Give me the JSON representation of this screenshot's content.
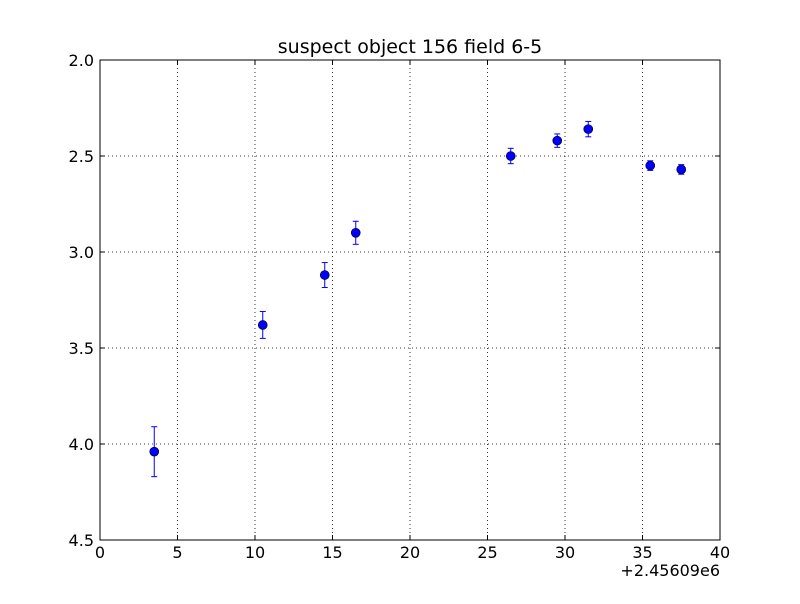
{
  "chart_data": {
    "type": "scatter",
    "title": "suspect object 156 field 6-5",
    "xlabel": "",
    "ylabel": "",
    "x_offset_label": "+2.45609e6",
    "xlim": [
      0,
      40
    ],
    "ylim": [
      4.5,
      2.0
    ],
    "y_inverted": true,
    "grid": true,
    "x_ticks": [
      0,
      5,
      10,
      15,
      20,
      25,
      30,
      35,
      40
    ],
    "x_tick_labels": [
      "0",
      "5",
      "10",
      "15",
      "20",
      "25",
      "30",
      "35",
      "40"
    ],
    "y_ticks": [
      2.0,
      2.5,
      3.0,
      3.5,
      4.0,
      4.5
    ],
    "y_tick_labels": [
      "2.0",
      "2.5",
      "3.0",
      "3.5",
      "4.0",
      "4.5"
    ],
    "series": [
      {
        "color": "#0000ff",
        "marker": "circle",
        "points": [
          {
            "x": 3.5,
            "y": 4.04,
            "err": 0.13
          },
          {
            "x": 10.5,
            "y": 3.38,
            "err": 0.07
          },
          {
            "x": 14.5,
            "y": 3.12,
            "err": 0.065
          },
          {
            "x": 16.5,
            "y": 2.9,
            "err": 0.06
          },
          {
            "x": 26.5,
            "y": 2.5,
            "err": 0.04
          },
          {
            "x": 29.5,
            "y": 2.42,
            "err": 0.035
          },
          {
            "x": 31.5,
            "y": 2.36,
            "err": 0.04
          },
          {
            "x": 35.5,
            "y": 2.55,
            "err": 0.025
          },
          {
            "x": 37.5,
            "y": 2.57,
            "err": 0.025
          }
        ]
      }
    ]
  }
}
